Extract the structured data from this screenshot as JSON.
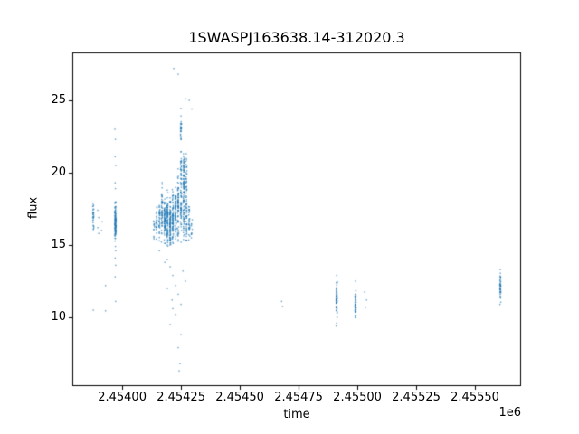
{
  "chart_data": {
    "type": "scatter",
    "title": "1SWASPJ163638.14-312020.3",
    "xlabel": "time",
    "ylabel": "flux",
    "x_offset": "1e6",
    "marker_color": "#1f77b4",
    "grid": false,
    "legend": null,
    "xlim": [
      2453788,
      2455696
    ],
    "ylim": [
      5.25,
      28.31
    ],
    "xticks": [
      {
        "value": 2454000,
        "label": "2.45400"
      },
      {
        "value": 2454250,
        "label": "2.45425"
      },
      {
        "value": 2454500,
        "label": "2.45450"
      },
      {
        "value": 2454750,
        "label": "2.45475"
      },
      {
        "value": 2455000,
        "label": "2.45500"
      },
      {
        "value": 2455250,
        "label": "2.45525"
      },
      {
        "value": 2455500,
        "label": "2.45550"
      }
    ],
    "yticks": [
      {
        "value": 10,
        "label": "10"
      },
      {
        "value": 15,
        "label": "15"
      },
      {
        "value": 20,
        "label": "20"
      },
      {
        "value": 25,
        "label": "25"
      }
    ],
    "night_clusters": [
      {
        "t": 2453877,
        "n": 30,
        "mean": 17.1,
        "sd": 0.55,
        "min": 15.85,
        "max": 18.3
      },
      {
        "t": 2453971,
        "n": 120,
        "mean": 16.6,
        "sd": 0.65,
        "min": 15.2,
        "max": 18.1
      },
      {
        "t": 2454135,
        "n": 12,
        "mean": 16.2,
        "sd": 0.45,
        "min": 15.4,
        "max": 17.1
      },
      {
        "t": 2454146,
        "n": 22,
        "mean": 16.5,
        "sd": 0.55,
        "min": 15.4,
        "max": 17.8
      },
      {
        "t": 2454158,
        "n": 35,
        "mean": 16.8,
        "sd": 0.7,
        "min": 15.2,
        "max": 18.4
      },
      {
        "t": 2454169,
        "n": 55,
        "mean": 17.2,
        "sd": 0.9,
        "min": 15.2,
        "max": 19.6
      },
      {
        "t": 2454181,
        "n": 75,
        "mean": 16.8,
        "sd": 0.8,
        "min": 14.9,
        "max": 18.9
      },
      {
        "t": 2454192,
        "n": 85,
        "mean": 16.7,
        "sd": 0.85,
        "min": 14.7,
        "max": 19.0
      },
      {
        "t": 2454204,
        "n": 85,
        "mean": 16.6,
        "sd": 0.85,
        "min": 14.6,
        "max": 19.0
      },
      {
        "t": 2454215,
        "n": 75,
        "mean": 16.9,
        "sd": 0.9,
        "min": 14.8,
        "max": 19.4
      },
      {
        "t": 2454227,
        "n": 65,
        "mean": 17.1,
        "sd": 1.0,
        "min": 14.8,
        "max": 19.8
      },
      {
        "t": 2454238,
        "n": 75,
        "mean": 17.6,
        "sd": 1.2,
        "min": 14.8,
        "max": 20.6
      },
      {
        "t": 2454250,
        "n": 60,
        "mean": 17.9,
        "sd": 1.3,
        "min": 15.0,
        "max": 21.0
      },
      {
        "t": 2454250,
        "n": 28,
        "mean": 23.2,
        "sd": 0.8,
        "min": 21.9,
        "max": 24.5
      },
      {
        "t": 2454250,
        "n": 22,
        "mean": 20.3,
        "sd": 0.7,
        "min": 19.2,
        "max": 21.6
      },
      {
        "t": 2454262,
        "n": 80,
        "mean": 18.3,
        "sd": 1.5,
        "min": 15.2,
        "max": 21.4
      },
      {
        "t": 2454262,
        "n": 28,
        "mean": 19.9,
        "sd": 0.5,
        "min": 19.1,
        "max": 21.2
      },
      {
        "t": 2454273,
        "n": 55,
        "mean": 17.3,
        "sd": 1.2,
        "min": 15.0,
        "max": 20.0
      },
      {
        "t": 2454273,
        "n": 18,
        "mean": 20.0,
        "sd": 0.8,
        "min": 18.8,
        "max": 21.4
      },
      {
        "t": 2454285,
        "n": 30,
        "mean": 16.4,
        "sd": 0.7,
        "min": 15.2,
        "max": 18.0
      },
      {
        "t": 2454296,
        "n": 10,
        "mean": 16.0,
        "sd": 0.5,
        "min": 15.3,
        "max": 16.9
      },
      {
        "t": 2454912,
        "n": 55,
        "mean": 11.3,
        "sd": 0.65,
        "min": 10.0,
        "max": 12.5
      },
      {
        "t": 2454992,
        "n": 45,
        "mean": 11.0,
        "sd": 0.55,
        "min": 9.95,
        "max": 12.05
      },
      {
        "t": 2455608,
        "n": 40,
        "mean": 12.1,
        "sd": 0.45,
        "min": 11.2,
        "max": 12.95
      }
    ],
    "extra_points": [
      [
        2453877,
        10.5
      ],
      [
        2453929,
        12.2
      ],
      [
        2453929,
        10.45
      ],
      [
        2453896,
        17.4
      ],
      [
        2453900,
        16.9
      ],
      [
        2453915,
        16.6
      ],
      [
        2453896,
        16.2
      ],
      [
        2453912,
        16.0
      ],
      [
        2453900,
        15.8
      ],
      [
        2453969,
        23.0
      ],
      [
        2453971,
        22.3
      ],
      [
        2453970,
        21.1
      ],
      [
        2453972,
        20.5
      ],
      [
        2453970,
        19.3
      ],
      [
        2453971,
        18.9
      ],
      [
        2453971,
        14.9
      ],
      [
        2453972,
        14.6
      ],
      [
        2453970,
        14.1
      ],
      [
        2453972,
        13.6
      ],
      [
        2453970,
        12.8
      ],
      [
        2453972,
        11.1
      ],
      [
        2454219,
        27.2
      ],
      [
        2454238,
        26.8
      ],
      [
        2454269,
        25.1
      ],
      [
        2454285,
        25.0
      ],
      [
        2454296,
        24.4
      ],
      [
        2454181,
        13.8
      ],
      [
        2454158,
        14.6
      ],
      [
        2454192,
        14.0
      ],
      [
        2454204,
        13.5
      ],
      [
        2454215,
        12.9
      ],
      [
        2454227,
        12.2
      ],
      [
        2454238,
        11.6
      ],
      [
        2454250,
        10.9
      ],
      [
        2454227,
        10.2
      ],
      [
        2454204,
        9.5
      ],
      [
        2454250,
        8.8
      ],
      [
        2454238,
        7.9
      ],
      [
        2454246,
        6.8
      ],
      [
        2454242,
        6.3
      ],
      [
        2454212,
        11.2
      ],
      [
        2454258,
        13.2
      ],
      [
        2454269,
        12.5
      ],
      [
        2454192,
        12.0
      ],
      [
        2454215,
        10.6
      ],
      [
        2454678,
        11.1
      ],
      [
        2454682,
        10.75
      ],
      [
        2454912,
        12.9
      ],
      [
        2454912,
        9.6
      ],
      [
        2454910,
        9.4
      ],
      [
        2454992,
        12.5
      ],
      [
        2455031,
        11.75
      ],
      [
        2455039,
        11.2
      ],
      [
        2455035,
        10.7
      ],
      [
        2455608,
        13.3
      ],
      [
        2455608,
        13.05
      ],
      [
        2455606,
        10.9
      ],
      [
        2455610,
        11.05
      ]
    ]
  }
}
